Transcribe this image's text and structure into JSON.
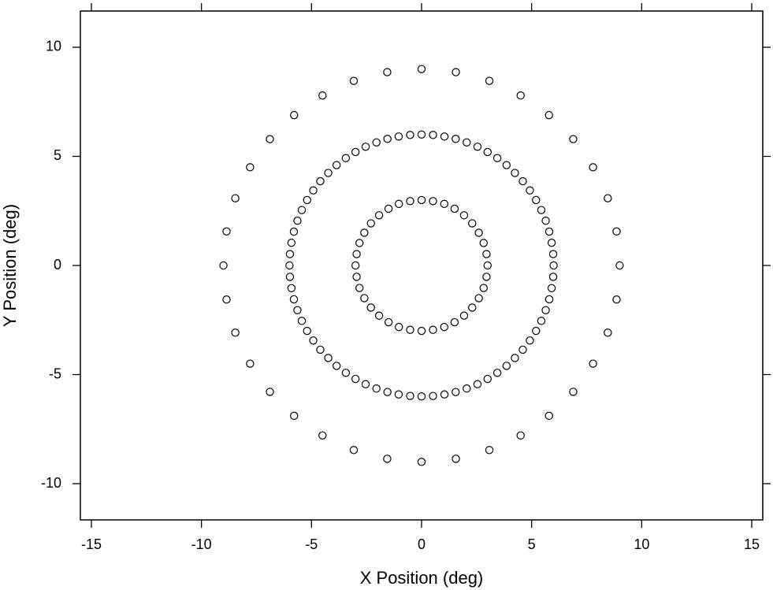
{
  "chart_data": {
    "type": "scatter",
    "xlabel": "X Position (deg)",
    "ylabel": "Y Position (deg)",
    "xlim": [
      -15.5,
      15.5
    ],
    "ylim": [
      -11.66,
      11.66
    ],
    "xticks": [
      -15,
      -10,
      -5,
      0,
      5,
      10,
      15
    ],
    "yticks": [
      -10,
      -5,
      0,
      5,
      10
    ],
    "color": "#000000",
    "x": [
      3,
      2.95,
      2.82,
      2.6,
      2.3,
      1.93,
      1.5,
      1.03,
      0.52,
      0,
      -0.52,
      -1.03,
      -1.5,
      -1.93,
      -2.3,
      -2.6,
      -2.82,
      -2.95,
      -3,
      -2.95,
      -2.82,
      -2.6,
      -2.3,
      -1.93,
      -1.5,
      -1.03,
      -0.52,
      0,
      0.52,
      1.03,
      1.5,
      1.93,
      2.3,
      2.6,
      2.82,
      2.95,
      6,
      5.98,
      5.91,
      5.8,
      5.64,
      5.44,
      5.2,
      4.92,
      4.6,
      4.24,
      3.86,
      3.44,
      3,
      2.54,
      2.05,
      1.55,
      1.04,
      0.52,
      0,
      -0.52,
      -1.04,
      -1.55,
      -2.05,
      -2.54,
      -3,
      -3.44,
      -3.86,
      -4.24,
      -4.6,
      -4.92,
      -5.2,
      -5.44,
      -5.64,
      -5.8,
      -5.91,
      -5.98,
      -6,
      -5.98,
      -5.91,
      -5.8,
      -5.64,
      -5.44,
      -5.2,
      -4.92,
      -4.6,
      -4.24,
      -3.86,
      -3.44,
      -3,
      -2.54,
      -2.05,
      -1.55,
      -1.04,
      -0.52,
      0,
      0.52,
      1.04,
      1.55,
      2.05,
      2.54,
      3,
      3.44,
      3.86,
      4.24,
      4.6,
      4.92,
      5.2,
      5.44,
      5.64,
      5.8,
      5.91,
      5.98,
      9,
      8.86,
      8.46,
      7.79,
      6.89,
      5.79,
      4.5,
      3.08,
      1.56,
      0,
      -1.56,
      -3.08,
      -4.5,
      -5.79,
      -6.89,
      -7.79,
      -8.46,
      -8.86,
      -9,
      -8.86,
      -8.46,
      -7.79,
      -6.89,
      -5.79,
      -4.5,
      -3.08,
      -1.56,
      0,
      1.56,
      3.08,
      4.5,
      5.79,
      6.89,
      7.79,
      8.46,
      8.86
    ],
    "y": [
      0,
      0.52,
      1.03,
      1.5,
      1.93,
      2.3,
      2.6,
      2.82,
      2.95,
      3,
      2.95,
      2.82,
      2.6,
      2.3,
      1.93,
      1.5,
      1.03,
      0.52,
      0,
      -0.52,
      -1.03,
      -1.5,
      -1.93,
      -2.3,
      -2.6,
      -2.82,
      -2.95,
      -3,
      -2.95,
      -2.82,
      -2.6,
      -2.3,
      -1.93,
      -1.5,
      -1.03,
      -0.52,
      0,
      0.52,
      1.04,
      1.55,
      2.05,
      2.54,
      3,
      3.44,
      3.86,
      4.24,
      4.6,
      4.92,
      5.2,
      5.44,
      5.64,
      5.8,
      5.91,
      5.98,
      6,
      5.98,
      5.91,
      5.8,
      5.64,
      5.44,
      5.2,
      4.92,
      4.6,
      4.24,
      3.86,
      3.44,
      3,
      2.54,
      2.05,
      1.55,
      1.04,
      0.52,
      0,
      -0.52,
      -1.04,
      -1.55,
      -2.05,
      -2.54,
      -3,
      -3.44,
      -3.86,
      -4.24,
      -4.6,
      -4.92,
      -5.2,
      -5.44,
      -5.64,
      -5.8,
      -5.91,
      -5.98,
      -6,
      -5.98,
      -5.91,
      -5.8,
      -5.64,
      -5.44,
      -5.2,
      -4.92,
      -4.6,
      -4.24,
      -3.86,
      -3.44,
      -3,
      -2.54,
      -2.05,
      -1.55,
      -1.04,
      -0.52,
      0,
      1.56,
      3.08,
      4.5,
      5.79,
      6.89,
      7.79,
      8.46,
      8.86,
      9,
      8.86,
      8.46,
      7.79,
      6.89,
      5.79,
      4.5,
      3.08,
      1.56,
      0,
      -1.56,
      -3.08,
      -4.5,
      -5.79,
      -6.89,
      -7.79,
      -8.46,
      -8.86,
      -9,
      -8.86,
      -8.46,
      -7.79,
      -6.89,
      -5.79,
      -4.5,
      -3.08,
      -1.56
    ]
  }
}
